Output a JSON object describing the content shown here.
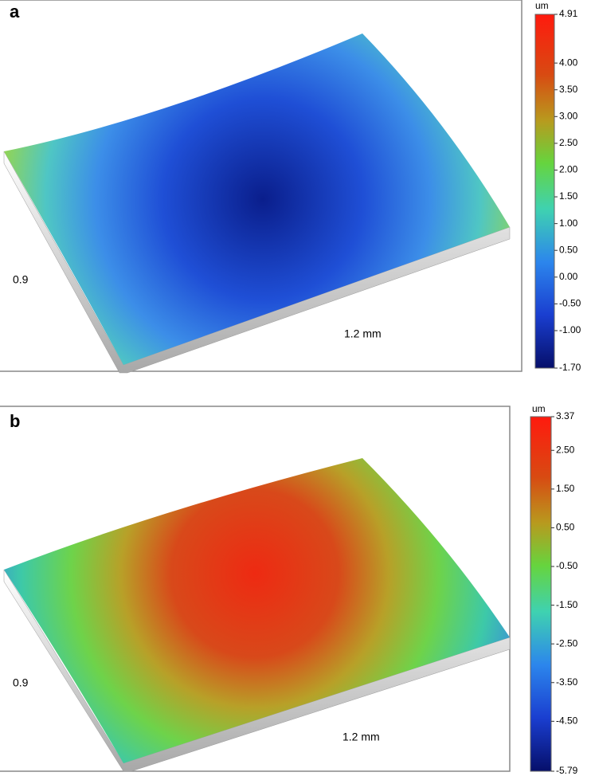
{
  "panels": [
    {
      "label": "a",
      "y_label": "0.9",
      "x_label": "1.2 mm",
      "colorbar": {
        "unit": "um",
        "range": [
          -1.7,
          4.91
        ],
        "ticks": [
          {
            "value": 4.91,
            "label": "4.91"
          },
          {
            "value": 4,
            "label": "4.00"
          },
          {
            "value": 3.5,
            "label": "3.50"
          },
          {
            "value": 3,
            "label": "3.00"
          },
          {
            "value": 2.5,
            "label": "2.50"
          },
          {
            "value": 2,
            "label": "2.00"
          },
          {
            "value": 1.5,
            "label": "1.50"
          },
          {
            "value": 1,
            "label": "1.00"
          },
          {
            "value": 0.5,
            "label": "0.50"
          },
          {
            "value": 0,
            "label": "0.00"
          },
          {
            "value": -0.5,
            "label": "-0.50"
          },
          {
            "value": -1,
            "label": "-1.00"
          },
          {
            "value": -1.7,
            "label": "-1.70"
          }
        ]
      }
    },
    {
      "label": "b",
      "y_label": "0.9",
      "x_label": "1.2 mm",
      "colorbar": {
        "unit": "um",
        "range": [
          -5.79,
          3.37
        ],
        "ticks": [
          {
            "value": 3.37,
            "label": "3.37"
          },
          {
            "value": 2.5,
            "label": "2.50"
          },
          {
            "value": 1.5,
            "label": "1.50"
          },
          {
            "value": 0.5,
            "label": "0.50"
          },
          {
            "value": -0.5,
            "label": "-0.50"
          },
          {
            "value": -1.5,
            "label": "-1.50"
          },
          {
            "value": -2.5,
            "label": "-2.50"
          },
          {
            "value": -3.5,
            "label": "-3.50"
          },
          {
            "value": -4.5,
            "label": "-4.50"
          },
          {
            "value": -5.79,
            "label": "-5.79"
          }
        ]
      }
    }
  ]
}
